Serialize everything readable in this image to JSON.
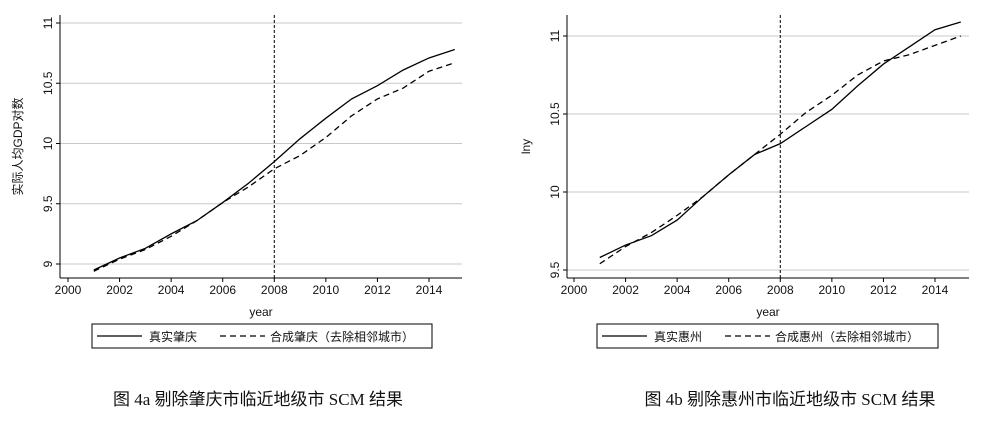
{
  "chart_data": [
    {
      "type": "line",
      "caption": "图 4a 剔除肇庆市临近地级市 SCM 结果",
      "xlabel": "year",
      "ylabel": "实际人均GDP对数",
      "xlim": [
        2000,
        2015
      ],
      "ylim": [
        9,
        11
      ],
      "xticks": [
        "2000",
        "2002",
        "2004",
        "2006",
        "2008",
        "2010",
        "2012",
        "2014"
      ],
      "yticks": [
        "9",
        "9.5",
        "10",
        "10.5",
        "11"
      ],
      "grid": true,
      "treatment_year": 2008,
      "legend": "bottom",
      "x": [
        2001,
        2002,
        2003,
        2004,
        2005,
        2006,
        2007,
        2008,
        2009,
        2010,
        2011,
        2012,
        2013,
        2014,
        2015
      ],
      "series": [
        {
          "name": "真实肇庆",
          "style": "solid",
          "values": [
            8.95,
            9.05,
            9.13,
            9.25,
            9.36,
            9.51,
            9.67,
            9.85,
            10.04,
            10.21,
            10.37,
            10.48,
            10.61,
            10.71,
            10.78
          ]
        },
        {
          "name": "合成肇庆（去除相邻城市）",
          "style": "dashed",
          "values": [
            8.94,
            9.04,
            9.12,
            9.23,
            9.36,
            9.51,
            9.64,
            9.79,
            9.9,
            10.05,
            10.23,
            10.37,
            10.46,
            10.6,
            10.67
          ]
        }
      ]
    },
    {
      "type": "line",
      "caption": "图 4b 剔除惠州市临近地级市 SCM 结果",
      "xlabel": "year",
      "ylabel": "lny",
      "xlim": [
        2000,
        2015
      ],
      "ylim": [
        9.5,
        11.1
      ],
      "xticks": [
        "2000",
        "2002",
        "2004",
        "2006",
        "2008",
        "2010",
        "2012",
        "2014"
      ],
      "yticks": [
        "9.5",
        "10",
        "10.5",
        "11"
      ],
      "grid": true,
      "treatment_year": 2008,
      "legend": "bottom",
      "x": [
        2001,
        2002,
        2003,
        2004,
        2005,
        2006,
        2007,
        2008,
        2009,
        2010,
        2011,
        2012,
        2013,
        2014,
        2015
      ],
      "series": [
        {
          "name": "真实惠州",
          "style": "solid",
          "values": [
            9.58,
            9.66,
            9.72,
            9.82,
            9.97,
            10.11,
            10.24,
            10.31,
            10.42,
            10.53,
            10.68,
            10.82,
            10.93,
            11.04,
            11.09
          ]
        },
        {
          "name": "合成惠州（去除相邻城市）",
          "style": "dashed",
          "values": [
            9.54,
            9.65,
            9.74,
            9.85,
            9.97,
            10.11,
            10.24,
            10.37,
            10.51,
            10.62,
            10.75,
            10.84,
            10.88,
            10.94,
            11.0
          ]
        }
      ]
    }
  ]
}
